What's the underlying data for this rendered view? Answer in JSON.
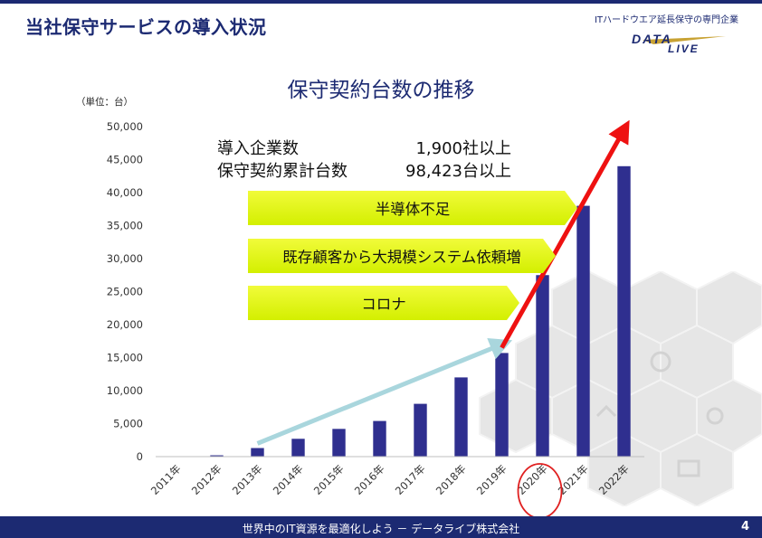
{
  "header": {
    "title": "当社保守サービスの導入状況",
    "tagline": "ITハードウエア延長保守の専門企業",
    "logo_text": "DATA LIVE"
  },
  "stats": {
    "companies_label": "導入企業数",
    "companies_value": "1,900社以上",
    "units_label": "保守契約累計台数",
    "units_value": "98,423台以上"
  },
  "callouts": [
    "半導体不足",
    "既存顧客から大規模システム依頼増",
    "コロナ"
  ],
  "footer": {
    "text": "世界中のIT資源を最適化しよう － データライブ株式会社",
    "page_number": "4"
  },
  "colors": {
    "brand": "#1c2a72",
    "bar": "#2f2f8f",
    "trend_pre": "#a9d6dd",
    "trend_post": "#ee1111",
    "callout": "#e6f51c",
    "highlight_circle": "#e02020"
  },
  "chart_data": {
    "type": "bar",
    "title": "保守契約台数の推移",
    "unit_label": "（単位：台）",
    "categories": [
      "2011年",
      "2012年",
      "2013年",
      "2014年",
      "2015年",
      "2016年",
      "2017年",
      "2018年",
      "2019年",
      "2020年",
      "2021年",
      "2022年"
    ],
    "values": [
      50,
      200,
      1300,
      2700,
      4200,
      5400,
      8000,
      12000,
      15700,
      27500,
      38000,
      44000
    ],
    "ylim": [
      0,
      50000
    ],
    "yticks": [
      "0",
      "5,000",
      "10,000",
      "15,000",
      "20,000",
      "25,000",
      "30,000",
      "35,000",
      "40,000",
      "45,000",
      "50,000"
    ],
    "ytick_values": [
      0,
      5000,
      10000,
      15000,
      20000,
      25000,
      30000,
      35000,
      40000,
      45000,
      50000
    ],
    "grid": false,
    "highlighted_category": "2020年",
    "trend_arrows": [
      {
        "from": {
          "x": "2013年",
          "y": 2000
        },
        "to": {
          "x": "2019年",
          "y": 17000
        },
        "color": "#a9d6dd"
      },
      {
        "from": {
          "x": "2019年",
          "y": 16500
        },
        "to": {
          "x": "2022年",
          "y": 49500
        },
        "color": "#ee1111"
      }
    ]
  }
}
